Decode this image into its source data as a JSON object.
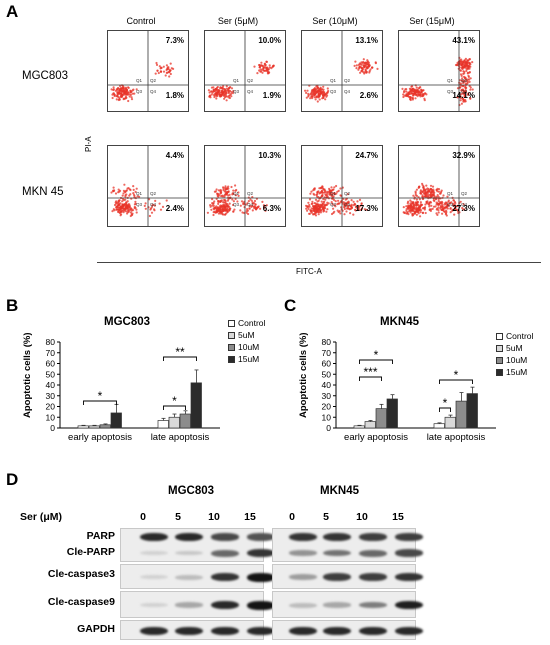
{
  "panels": {
    "a": "A",
    "b": "B",
    "c": "C",
    "d": "D"
  },
  "flow": {
    "columns": [
      "Control",
      "Ser (5μM)",
      "Ser (10μM)",
      "Ser (15μM)"
    ],
    "rows": [
      {
        "name": "MGC803",
        "upper": [
          "7.3%",
          "10.0%",
          "13.1%",
          "43.1%"
        ],
        "lower": [
          "1.8%",
          "1.9%",
          "2.6%",
          "14.1%"
        ]
      },
      {
        "name": "MKN 45",
        "upper": [
          "4.4%",
          "10.3%",
          "24.7%",
          "32.9%"
        ],
        "lower": [
          "2.4%",
          "6.3%",
          "17.3%",
          "27.3%"
        ]
      }
    ],
    "y_axis": "PI-A",
    "x_axis": "FITC-A",
    "quadrant_labels": [
      "Q1",
      "Q2",
      "Q3",
      "Q4"
    ]
  },
  "legend": {
    "b": [
      "Control",
      "5uM",
      "10uM",
      "15uM"
    ],
    "c": [
      "Control",
      "5uM",
      "10uM",
      "15uM"
    ]
  },
  "chart_data": [
    {
      "type": "bar",
      "title": "MGC803",
      "ylabel": "Apoptotic cells (%)",
      "ylim": [
        0,
        80
      ],
      "yticks": [
        "0",
        "10",
        "20",
        "30",
        "40",
        "50",
        "60",
        "70",
        "80"
      ],
      "categories": [
        "early apoptosis",
        "late apoptosis"
      ],
      "series": [
        {
          "name": "Control",
          "values": [
            2,
            7
          ],
          "errors": [
            0.5,
            2
          ],
          "color": "#ffffff"
        },
        {
          "name": "5uM",
          "values": [
            2,
            10
          ],
          "errors": [
            0.5,
            3
          ],
          "color": "#d9d9d9"
        },
        {
          "name": "10uM",
          "values": [
            3,
            13
          ],
          "errors": [
            0.8,
            3
          ],
          "color": "#8c8c8c"
        },
        {
          "name": "15uM",
          "values": [
            14,
            42
          ],
          "errors": [
            8,
            12
          ],
          "color": "#2b2b2b"
        }
      ],
      "significance": [
        "*",
        "*",
        "**"
      ]
    },
    {
      "type": "bar",
      "title": "MKN45",
      "ylabel": "Apoptotic cells (%)",
      "ylim": [
        0,
        80
      ],
      "yticks": [
        "0",
        "10",
        "20",
        "30",
        "40",
        "50",
        "60",
        "70",
        "80"
      ],
      "categories": [
        "early apoptosis",
        "late apoptosis"
      ],
      "series": [
        {
          "name": "Control",
          "values": [
            2,
            4
          ],
          "errors": [
            0.5,
            0.8
          ],
          "color": "#ffffff"
        },
        {
          "name": "5uM",
          "values": [
            6,
            10
          ],
          "errors": [
            1,
            2
          ],
          "color": "#d9d9d9"
        },
        {
          "name": "10uM",
          "values": [
            18,
            25
          ],
          "errors": [
            4,
            8
          ],
          "color": "#8c8c8c"
        },
        {
          "name": "15uM",
          "values": [
            27,
            32
          ],
          "errors": [
            4,
            6
          ],
          "color": "#2b2b2b"
        }
      ],
      "significance": [
        "***",
        "*",
        "*",
        "*"
      ]
    }
  ],
  "western": {
    "cell_lines": [
      "MGC803",
      "MKN45"
    ],
    "dose_label": "Ser (μM)",
    "lanes": [
      "0",
      "5",
      "10",
      "15"
    ],
    "proteins": [
      "PARP",
      "Cle-PARP",
      "Cle-caspase3",
      "Cle-caspase9",
      "GAPDH"
    ]
  }
}
